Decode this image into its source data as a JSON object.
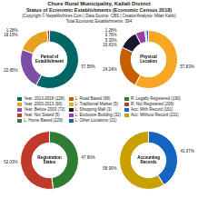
{
  "title": [
    "Chure Rural Municipality, Kailali District",
    "Status of Economic Establishments (Economic Census 2018)"
  ],
  "subtitle": [
    "(Copyright © NepalArchives.Com | Data Source: CBS | Creator/Analysis: Milan Karki)",
    "Total Economic Establishments: 394"
  ],
  "legend_entries": [
    {
      "name": "Year: 2013-2018 (228)",
      "color": "#006666"
    },
    {
      "name": "Year: 2003-2013 (90)",
      "color": "#e8a020"
    },
    {
      "name": "Year: Before 2003 (72)",
      "color": "#7b4fa6"
    },
    {
      "name": "Year: Not Stated (5)",
      "color": "#c0392b"
    },
    {
      "name": "L: Home Based (229)",
      "color": "#2e7d32"
    },
    {
      "name": "L: Road Based (96)",
      "color": "#c45e00"
    },
    {
      "name": "L: Traditional Market (5)",
      "color": "#f5a623"
    },
    {
      "name": "L: Shopping Mall (3)",
      "color": "#1a1a2e"
    },
    {
      "name": "L: Exclusive Building (32)",
      "color": "#9b3fa5"
    },
    {
      "name": "L: Other Locations (21)",
      "color": "#1565c0"
    },
    {
      "name": "R: Legally Registered (190)",
      "color": "#2e7d32"
    },
    {
      "name": "R: Not Registered (206)",
      "color": "#c0392b"
    },
    {
      "name": "Acc: With Record (161)",
      "color": "#1565c0"
    },
    {
      "name": "Acc: Without Record (231)",
      "color": "#c8a000"
    }
  ],
  "chart_data": [
    {
      "type": "doughnut",
      "title": "Period of\nEstablishment",
      "values": [
        57.58,
        22.85,
        18.15,
        1.28
      ],
      "value_labels": [
        "57.58%",
        "22.85%",
        "18.15%",
        "1.28%"
      ],
      "colors": [
        "#006666",
        "#7b4fa6",
        "#e8a020",
        "#c0392b"
      ],
      "data_labels": true
    },
    {
      "type": "doughnut",
      "title": "Physical\nLocation",
      "values": [
        57.83,
        24.24,
        10.81,
        5.3,
        0.76,
        1.28
      ],
      "value_labels": [
        "57.83%",
        "24.24%",
        "10.81%",
        "5.30%",
        "0.76%",
        "1.28%"
      ],
      "colors": [
        "#f5a623",
        "#c45e00",
        "#1a1a2e",
        "#9b3fa5",
        "#2e7d32",
        "#1565c0"
      ],
      "data_labels": true
    },
    {
      "type": "doughnut",
      "title": "Registration\nStatus",
      "values": [
        47.96,
        52.03
      ],
      "value_labels": [
        "47.96%",
        "52.03%"
      ],
      "colors": [
        "#2e7d32",
        "#c0392b"
      ],
      "data_labels": true
    },
    {
      "type": "doughnut",
      "title": "Accounting\nRecords",
      "values": [
        41.07,
        58.9
      ],
      "value_labels": [
        "41.07%",
        "58.90%"
      ],
      "colors": [
        "#1565c0",
        "#c8a000"
      ],
      "data_labels": true
    }
  ]
}
